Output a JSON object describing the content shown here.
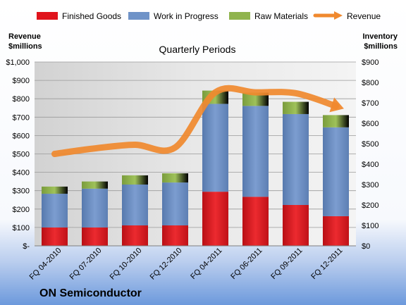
{
  "chart_data": {
    "type": "bar",
    "subtype": "stacked-bar-with-line",
    "title": "Quarterly Periods",
    "company": "ON Semiconductor",
    "categories": [
      "FQ 04-2010",
      "FQ 07-2010",
      "FQ 10-2010",
      "FQ 12-2010",
      "FQ 04-2011",
      "FQ 06-2011",
      "FQ 09-2011",
      "FQ 12-2011"
    ],
    "series": [
      {
        "name": "Finished Goods",
        "axis": "right",
        "color": "#e0141c",
        "values": [
          90,
          90,
          100,
          100,
          265,
          240,
          200,
          145
        ]
      },
      {
        "name": "Work in Progress",
        "axis": "right",
        "color": "#6f93c8",
        "values": [
          165,
          190,
          200,
          210,
          430,
          445,
          445,
          435
        ]
      },
      {
        "name": "Raw Materials",
        "axis": "right",
        "color": "#90b44e",
        "values": [
          35,
          35,
          45,
          45,
          65,
          65,
          60,
          60
        ]
      },
      {
        "name": "Revenue",
        "axis": "left",
        "type": "line",
        "color": "#f0892e",
        "values": [
          500,
          530,
          550,
          535,
          835,
          835,
          830,
          760
        ]
      }
    ],
    "left_axis": {
      "label_line1": "Revenue",
      "label_line2": "$millions",
      "range": [
        0,
        1000
      ],
      "ticks": [
        "$-",
        "$100",
        "$200",
        "$300",
        "$400",
        "$500",
        "$600",
        "$700",
        "$800",
        "$900",
        "$1,000"
      ]
    },
    "right_axis": {
      "label_line1": "Inventory",
      "label_line2": "$millions",
      "range": [
        0,
        900
      ],
      "ticks": [
        "$0",
        "$100",
        "$200",
        "$300",
        "$400",
        "$500",
        "$600",
        "$700",
        "$800",
        "$900"
      ]
    },
    "grid": true,
    "legend_position": "top"
  }
}
